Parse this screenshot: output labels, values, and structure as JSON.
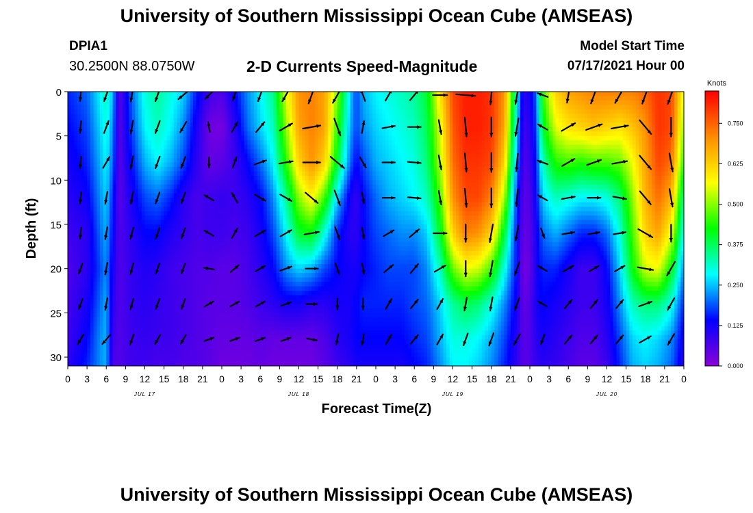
{
  "header": {
    "title": "University of Southern Mississippi Ocean Cube (AMSEAS)",
    "station_id": "DPIA1",
    "station_coords": "30.2500N  88.0750W",
    "plot_title": "2-D Currents Speed-Magnitude",
    "model_start_label": "Model Start Time",
    "model_start_value": "07/17/2021 Hour 00"
  },
  "footer": {
    "title": "University of Southern Mississippi Ocean Cube (AMSEAS)"
  },
  "colors": {
    "scale": [
      "#8a00d8",
      "#0000ff",
      "#00ffff",
      "#00ff00",
      "#ffff00",
      "#ff8c00",
      "#ff0000"
    ],
    "arrow": "#000000",
    "background": "#ffffff"
  },
  "chart_data": {
    "type": "heatmap",
    "title": "2-D Currents Speed-Magnitude",
    "xlabel": "Forecast Time(Z)",
    "ylabel": "Depth (ft)",
    "x_hours_range": [
      0,
      96
    ],
    "x_tick_labels": [
      "0",
      "3",
      "6",
      "9",
      "12",
      "15",
      "18",
      "21",
      "0",
      "3",
      "6",
      "9",
      "12",
      "15",
      "18",
      "21",
      "0",
      "3",
      "6",
      "9",
      "12",
      "15",
      "18",
      "21",
      "0",
      "3",
      "6",
      "9",
      "12",
      "15",
      "18",
      "21",
      "0"
    ],
    "day_labels": [
      {
        "hour": 12,
        "label": "JUL 17"
      },
      {
        "hour": 36,
        "label": "JUL 18"
      },
      {
        "hour": 60,
        "label": "JUL 19"
      },
      {
        "hour": 84,
        "label": "JUL 20"
      }
    ],
    "ylim": [
      0,
      31
    ],
    "y_ticks": [
      0,
      5,
      10,
      15,
      20,
      25,
      30
    ],
    "colorbar": {
      "title": "Knots",
      "range": [
        0,
        0.85
      ],
      "ticks": [
        0.0,
        0.125,
        0.25,
        0.375,
        0.5,
        0.625,
        0.75
      ],
      "tick_labels": [
        "0.000",
        "0.125",
        "0.250",
        "0.375",
        "0.500",
        "0.625",
        "0.750"
      ]
    },
    "speed_at_depth": {
      "hours": [
        0,
        3,
        5,
        6,
        7,
        8,
        10,
        12,
        14,
        16,
        18,
        20,
        22,
        24,
        26,
        28,
        30,
        32,
        34,
        36,
        38,
        40,
        42,
        44,
        45,
        46,
        48,
        50,
        52,
        54,
        56,
        58,
        60,
        62,
        64,
        66,
        68,
        70,
        71,
        72,
        73,
        74,
        76,
        78,
        80,
        82,
        84,
        86,
        88,
        90,
        92,
        94,
        96
      ],
      "depths_ft": [
        0,
        4,
        8,
        12,
        16,
        20,
        24,
        28,
        31
      ],
      "values_knots": [
        [
          0.16,
          0.2,
          0.28,
          0.32,
          0.25,
          0.05,
          0.2,
          0.3,
          0.34,
          0.3,
          0.26,
          0.16,
          0.08,
          0.06,
          0.14,
          0.22,
          0.28,
          0.35,
          0.55,
          0.7,
          0.72,
          0.68,
          0.5,
          0.26,
          0.18,
          0.24,
          0.28,
          0.3,
          0.32,
          0.34,
          0.4,
          0.6,
          0.78,
          0.82,
          0.82,
          0.8,
          0.7,
          0.3,
          0.1,
          0.12,
          0.2,
          0.45,
          0.62,
          0.68,
          0.7,
          0.72,
          0.72,
          0.72,
          0.72,
          0.75,
          0.8,
          0.78,
          0.55
        ],
        [
          0.14,
          0.18,
          0.26,
          0.3,
          0.22,
          0.05,
          0.18,
          0.28,
          0.32,
          0.28,
          0.22,
          0.12,
          0.03,
          0.02,
          0.1,
          0.2,
          0.26,
          0.32,
          0.5,
          0.68,
          0.72,
          0.68,
          0.45,
          0.24,
          0.18,
          0.22,
          0.26,
          0.28,
          0.3,
          0.32,
          0.38,
          0.55,
          0.76,
          0.82,
          0.82,
          0.8,
          0.68,
          0.26,
          0.08,
          0.1,
          0.18,
          0.4,
          0.55,
          0.6,
          0.62,
          0.64,
          0.62,
          0.6,
          0.64,
          0.7,
          0.8,
          0.78,
          0.5
        ],
        [
          0.12,
          0.16,
          0.24,
          0.28,
          0.2,
          0.05,
          0.15,
          0.24,
          0.28,
          0.24,
          0.18,
          0.1,
          0.04,
          0.05,
          0.08,
          0.14,
          0.2,
          0.28,
          0.44,
          0.62,
          0.7,
          0.62,
          0.4,
          0.2,
          0.14,
          0.18,
          0.24,
          0.26,
          0.28,
          0.3,
          0.36,
          0.52,
          0.74,
          0.8,
          0.8,
          0.78,
          0.62,
          0.22,
          0.06,
          0.08,
          0.16,
          0.32,
          0.44,
          0.46,
          0.44,
          0.46,
          0.46,
          0.48,
          0.56,
          0.68,
          0.78,
          0.74,
          0.44
        ],
        [
          0.1,
          0.13,
          0.22,
          0.26,
          0.16,
          0.05,
          0.12,
          0.18,
          0.2,
          0.16,
          0.1,
          0.07,
          0.08,
          0.09,
          0.08,
          0.1,
          0.14,
          0.22,
          0.34,
          0.5,
          0.58,
          0.46,
          0.26,
          0.12,
          0.09,
          0.14,
          0.2,
          0.24,
          0.26,
          0.28,
          0.32,
          0.46,
          0.7,
          0.78,
          0.78,
          0.72,
          0.52,
          0.16,
          0.05,
          0.06,
          0.14,
          0.26,
          0.32,
          0.3,
          0.28,
          0.28,
          0.3,
          0.36,
          0.5,
          0.66,
          0.74,
          0.66,
          0.34
        ],
        [
          0.08,
          0.1,
          0.2,
          0.24,
          0.14,
          0.06,
          0.1,
          0.14,
          0.14,
          0.11,
          0.09,
          0.07,
          0.08,
          0.08,
          0.07,
          0.08,
          0.12,
          0.18,
          0.28,
          0.4,
          0.42,
          0.3,
          0.16,
          0.1,
          0.1,
          0.14,
          0.18,
          0.2,
          0.22,
          0.22,
          0.26,
          0.4,
          0.62,
          0.72,
          0.7,
          0.62,
          0.4,
          0.14,
          0.04,
          0.05,
          0.12,
          0.2,
          0.24,
          0.2,
          0.16,
          0.16,
          0.2,
          0.3,
          0.46,
          0.62,
          0.68,
          0.56,
          0.28
        ],
        [
          0.06,
          0.1,
          0.18,
          0.22,
          0.12,
          0.06,
          0.09,
          0.11,
          0.1,
          0.08,
          0.07,
          0.06,
          0.06,
          0.05,
          0.05,
          0.07,
          0.1,
          0.14,
          0.22,
          0.26,
          0.24,
          0.18,
          0.14,
          0.12,
          0.12,
          0.14,
          0.16,
          0.18,
          0.18,
          0.18,
          0.22,
          0.32,
          0.48,
          0.56,
          0.54,
          0.46,
          0.3,
          0.14,
          0.02,
          0.04,
          0.12,
          0.16,
          0.16,
          0.12,
          0.08,
          0.08,
          0.14,
          0.26,
          0.42,
          0.54,
          0.56,
          0.42,
          0.22
        ],
        [
          0.07,
          0.12,
          0.2,
          0.24,
          0.1,
          0.06,
          0.09,
          0.1,
          0.09,
          0.08,
          0.07,
          0.06,
          0.05,
          0.05,
          0.05,
          0.06,
          0.08,
          0.1,
          0.12,
          0.12,
          0.1,
          0.1,
          0.12,
          0.12,
          0.14,
          0.16,
          0.16,
          0.16,
          0.16,
          0.18,
          0.2,
          0.26,
          0.34,
          0.38,
          0.36,
          0.3,
          0.22,
          0.12,
          0.04,
          0.06,
          0.12,
          0.14,
          0.12,
          0.1,
          0.08,
          0.08,
          0.12,
          0.22,
          0.32,
          0.36,
          0.36,
          0.3,
          0.16
        ],
        [
          0.08,
          0.14,
          0.22,
          0.24,
          0.08,
          0.06,
          0.08,
          0.09,
          0.08,
          0.08,
          0.07,
          0.06,
          0.05,
          0.04,
          0.04,
          0.04,
          0.05,
          0.04,
          0.04,
          0.04,
          0.04,
          0.06,
          0.1,
          0.12,
          0.14,
          0.14,
          0.14,
          0.14,
          0.14,
          0.16,
          0.18,
          0.24,
          0.3,
          0.3,
          0.28,
          0.24,
          0.18,
          0.1,
          0.05,
          0.06,
          0.1,
          0.12,
          0.1,
          0.08,
          0.06,
          0.06,
          0.1,
          0.18,
          0.26,
          0.28,
          0.26,
          0.22,
          0.12
        ],
        [
          0.1,
          0.16,
          0.22,
          0.24,
          0.06,
          0.06,
          0.08,
          0.08,
          0.07,
          0.07,
          0.06,
          0.06,
          0.05,
          0.03,
          0.03,
          0.03,
          0.04,
          0.03,
          0.03,
          0.03,
          0.03,
          0.05,
          0.08,
          0.1,
          0.12,
          0.12,
          0.12,
          0.12,
          0.12,
          0.14,
          0.16,
          0.22,
          0.28,
          0.28,
          0.26,
          0.22,
          0.16,
          0.09,
          0.05,
          0.06,
          0.09,
          0.1,
          0.09,
          0.07,
          0.05,
          0.05,
          0.08,
          0.16,
          0.24,
          0.26,
          0.24,
          0.2,
          0.1
        ]
      ]
    },
    "current_vectors": {
      "depths_ft": [
        0,
        4,
        8,
        12,
        16,
        20,
        24,
        28
      ],
      "hours": [
        2,
        6,
        10,
        14,
        18,
        22,
        26,
        30,
        34,
        38,
        42,
        46,
        50,
        54,
        58,
        62,
        66,
        70,
        74,
        78,
        82,
        86,
        90,
        94
      ],
      "direction_deg": [
        [
          185,
          200,
          190,
          200,
          230,
          225,
          200,
          200,
          210,
          200,
          210,
          340,
          30,
          40,
          90,
          95,
          185,
          190,
          290,
          190,
          200,
          210,
          200,
          200
        ],
        [
          185,
          20,
          190,
          200,
          210,
          350,
          30,
          40,
          60,
          80,
          160,
          10,
          80,
          90,
          170,
          175,
          180,
          190,
          300,
          60,
          70,
          80,
          140,
          180
        ],
        [
          185,
          30,
          190,
          200,
          200,
          180,
          20,
          70,
          80,
          90,
          130,
          150,
          90,
          95,
          170,
          175,
          180,
          185,
          290,
          60,
          70,
          80,
          140,
          170
        ],
        [
          185,
          190,
          190,
          200,
          200,
          300,
          330,
          120,
          120,
          130,
          160,
          170,
          90,
          95,
          170,
          175,
          180,
          185,
          300,
          80,
          90,
          100,
          140,
          170
        ],
        [
          185,
          190,
          195,
          200,
          200,
          300,
          30,
          60,
          60,
          80,
          160,
          170,
          60,
          50,
          90,
          180,
          190,
          190,
          160,
          80,
          80,
          80,
          120,
          180
        ],
        [
          200,
          190,
          195,
          200,
          200,
          280,
          50,
          60,
          70,
          90,
          160,
          170,
          50,
          40,
          60,
          180,
          190,
          200,
          300,
          60,
          60,
          60,
          100,
          210
        ],
        [
          200,
          190,
          195,
          200,
          200,
          60,
          60,
          60,
          70,
          90,
          180,
          180,
          30,
          40,
          30,
          190,
          190,
          200,
          300,
          40,
          40,
          40,
          70,
          210
        ],
        [
          210,
          220,
          200,
          210,
          210,
          70,
          70,
          70,
          70,
          100,
          190,
          190,
          30,
          40,
          30,
          200,
          200,
          210,
          200,
          40,
          40,
          40,
          60,
          210
        ]
      ],
      "speed_knots": [
        [
          0.2,
          0.3,
          0.3,
          0.3,
          0.26,
          0.1,
          0.12,
          0.3,
          0.4,
          0.7,
          0.7,
          0.26,
          0.28,
          0.3,
          0.4,
          0.8,
          0.82,
          0.7,
          0.1,
          0.5,
          0.68,
          0.72,
          0.72,
          0.78
        ],
        [
          0.18,
          0.28,
          0.3,
          0.28,
          0.22,
          0.04,
          0.15,
          0.28,
          0.4,
          0.68,
          0.7,
          0.22,
          0.26,
          0.28,
          0.4,
          0.78,
          0.82,
          0.7,
          0.1,
          0.5,
          0.6,
          0.62,
          0.7,
          0.78
        ],
        [
          0.16,
          0.26,
          0.26,
          0.24,
          0.18,
          0.06,
          0.12,
          0.24,
          0.36,
          0.62,
          0.68,
          0.2,
          0.24,
          0.28,
          0.4,
          0.76,
          0.8,
          0.66,
          0.1,
          0.4,
          0.44,
          0.46,
          0.66,
          0.74
        ],
        [
          0.14,
          0.22,
          0.2,
          0.18,
          0.12,
          0.09,
          0.12,
          0.2,
          0.3,
          0.54,
          0.52,
          0.1,
          0.22,
          0.26,
          0.36,
          0.72,
          0.78,
          0.6,
          0.08,
          0.3,
          0.3,
          0.32,
          0.62,
          0.7
        ],
        [
          0.12,
          0.22,
          0.16,
          0.14,
          0.1,
          0.08,
          0.1,
          0.16,
          0.26,
          0.42,
          0.3,
          0.12,
          0.2,
          0.22,
          0.3,
          0.66,
          0.7,
          0.46,
          0.06,
          0.22,
          0.16,
          0.22,
          0.56,
          0.62
        ],
        [
          0.1,
          0.2,
          0.12,
          0.1,
          0.08,
          0.06,
          0.08,
          0.12,
          0.2,
          0.26,
          0.18,
          0.12,
          0.16,
          0.18,
          0.24,
          0.5,
          0.54,
          0.36,
          0.04,
          0.16,
          0.08,
          0.14,
          0.5,
          0.52
        ],
        [
          0.1,
          0.2,
          0.1,
          0.09,
          0.07,
          0.05,
          0.06,
          0.08,
          0.1,
          0.12,
          0.1,
          0.12,
          0.16,
          0.16,
          0.18,
          0.32,
          0.34,
          0.26,
          0.05,
          0.14,
          0.08,
          0.12,
          0.34,
          0.34
        ],
        [
          0.14,
          0.22,
          0.1,
          0.08,
          0.07,
          0.05,
          0.04,
          0.04,
          0.04,
          0.04,
          0.08,
          0.12,
          0.12,
          0.14,
          0.18,
          0.26,
          0.3,
          0.22,
          0.05,
          0.12,
          0.06,
          0.08,
          0.26,
          0.26
        ]
      ]
    }
  }
}
